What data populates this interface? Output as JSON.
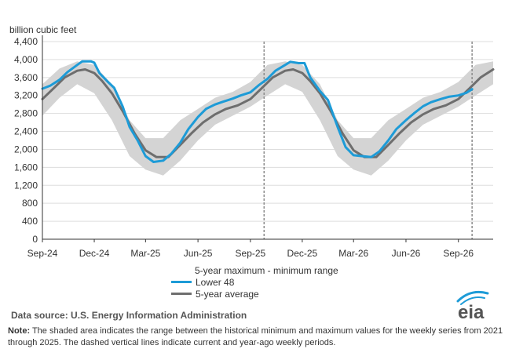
{
  "chart_data": {
    "type": "line",
    "unit_label": "billion cubic feet",
    "y_ticks": [
      0,
      400,
      800,
      1200,
      1600,
      2000,
      2400,
      2800,
      3200,
      3600,
      4000,
      4400
    ],
    "y_tick_labels": [
      "0",
      "400",
      "800",
      "1,200",
      "1,600",
      "2,000",
      "2,400",
      "2,800",
      "3,200",
      "3,600",
      "4,000",
      "4,400"
    ],
    "ylim": [
      0,
      4400
    ],
    "x_range": [
      "2024-09-01",
      "2026-11-01"
    ],
    "x_ticks": [
      {
        "date": "2024-09-01",
        "label": "Sep-24"
      },
      {
        "date": "2024-12-01",
        "label": "Dec-24"
      },
      {
        "date": "2025-03-01",
        "label": "Mar-25"
      },
      {
        "date": "2025-06-01",
        "label": "Jun-25"
      },
      {
        "date": "2025-09-01",
        "label": "Sep-25"
      },
      {
        "date": "2025-12-01",
        "label": "Dec-25"
      },
      {
        "date": "2026-03-01",
        "label": "Mar-26"
      },
      {
        "date": "2026-06-01",
        "label": "Jun-26"
      },
      {
        "date": "2026-09-01",
        "label": "Sep-26"
      }
    ],
    "vertical_markers": [
      "2025-09-25",
      "2026-09-25"
    ],
    "grid": "horizontal",
    "legend_title": "5-year maximum - minimum range",
    "range_band": {
      "name": "5-year maximum - minimum range",
      "color": "#d4d4d4",
      "points": [
        {
          "date": "2024-09-01",
          "min": 2750,
          "max": 3450
        },
        {
          "date": "2024-10-01",
          "min": 3150,
          "max": 3800
        },
        {
          "date": "2024-11-01",
          "min": 3450,
          "max": 3960
        },
        {
          "date": "2024-12-01",
          "min": 3250,
          "max": 3880
        },
        {
          "date": "2025-01-01",
          "min": 2650,
          "max": 3450
        },
        {
          "date": "2025-02-01",
          "min": 1850,
          "max": 2650
        },
        {
          "date": "2025-03-01",
          "min": 1550,
          "max": 2250
        },
        {
          "date": "2025-04-01",
          "min": 1420,
          "max": 2250
        },
        {
          "date": "2025-05-01",
          "min": 1750,
          "max": 2650
        },
        {
          "date": "2025-06-01",
          "min": 2200,
          "max": 2900
        },
        {
          "date": "2025-07-01",
          "min": 2550,
          "max": 3150
        },
        {
          "date": "2025-08-01",
          "min": 2750,
          "max": 3280
        },
        {
          "date": "2025-09-01",
          "min": 2950,
          "max": 3500
        },
        {
          "date": "2025-10-01",
          "min": 3200,
          "max": 3880
        },
        {
          "date": "2025-11-01",
          "min": 3450,
          "max": 3960
        },
        {
          "date": "2025-12-01",
          "min": 3280,
          "max": 3880
        },
        {
          "date": "2026-01-01",
          "min": 2650,
          "max": 3450
        },
        {
          "date": "2026-02-01",
          "min": 1850,
          "max": 2650
        },
        {
          "date": "2026-03-01",
          "min": 1550,
          "max": 2250
        },
        {
          "date": "2026-04-01",
          "min": 1420,
          "max": 2250
        },
        {
          "date": "2026-05-01",
          "min": 1750,
          "max": 2650
        },
        {
          "date": "2026-06-01",
          "min": 2200,
          "max": 2900
        },
        {
          "date": "2026-07-01",
          "min": 2550,
          "max": 3150
        },
        {
          "date": "2026-08-01",
          "min": 2750,
          "max": 3280
        },
        {
          "date": "2026-09-01",
          "min": 2950,
          "max": 3500
        },
        {
          "date": "2026-10-01",
          "min": 3200,
          "max": 3880
        },
        {
          "date": "2026-11-01",
          "min": 3450,
          "max": 3960
        }
      ]
    },
    "series": [
      {
        "name": "Lower 48",
        "color": "#1d9bd7",
        "points": [
          {
            "date": "2024-09-01",
            "value": 3350
          },
          {
            "date": "2024-09-15",
            "value": 3420
          },
          {
            "date": "2024-10-01",
            "value": 3550
          },
          {
            "date": "2024-10-15",
            "value": 3720
          },
          {
            "date": "2024-11-01",
            "value": 3880
          },
          {
            "date": "2024-11-10",
            "value": 3960
          },
          {
            "date": "2024-11-25",
            "value": 3960
          },
          {
            "date": "2024-12-01",
            "value": 3930
          },
          {
            "date": "2024-12-10",
            "value": 3700
          },
          {
            "date": "2024-12-25",
            "value": 3500
          },
          {
            "date": "2025-01-05",
            "value": 3370
          },
          {
            "date": "2025-01-20",
            "value": 2950
          },
          {
            "date": "2025-02-01",
            "value": 2500
          },
          {
            "date": "2025-02-15",
            "value": 2200
          },
          {
            "date": "2025-03-01",
            "value": 1850
          },
          {
            "date": "2025-03-15",
            "value": 1720
          },
          {
            "date": "2025-04-01",
            "value": 1750
          },
          {
            "date": "2025-04-15",
            "value": 1900
          },
          {
            "date": "2025-05-01",
            "value": 2150
          },
          {
            "date": "2025-05-15",
            "value": 2450
          },
          {
            "date": "2025-06-01",
            "value": 2720
          },
          {
            "date": "2025-06-15",
            "value": 2900
          },
          {
            "date": "2025-07-01",
            "value": 3000
          },
          {
            "date": "2025-07-15",
            "value": 3060
          },
          {
            "date": "2025-08-01",
            "value": 3130
          },
          {
            "date": "2025-08-15",
            "value": 3200
          },
          {
            "date": "2025-09-01",
            "value": 3270
          },
          {
            "date": "2025-09-15",
            "value": 3420
          },
          {
            "date": "2025-10-01",
            "value": 3570
          },
          {
            "date": "2025-10-15",
            "value": 3750
          },
          {
            "date": "2025-11-01",
            "value": 3880
          },
          {
            "date": "2025-11-10",
            "value": 3950
          },
          {
            "date": "2025-11-25",
            "value": 3920
          },
          {
            "date": "2025-12-05",
            "value": 3920
          },
          {
            "date": "2025-12-15",
            "value": 3600
          },
          {
            "date": "2026-01-01",
            "value": 3300
          },
          {
            "date": "2026-01-15",
            "value": 3100
          },
          {
            "date": "2026-02-01",
            "value": 2500
          },
          {
            "date": "2026-02-15",
            "value": 2050
          },
          {
            "date": "2026-03-01",
            "value": 1870
          },
          {
            "date": "2026-03-15",
            "value": 1850
          },
          {
            "date": "2026-04-01",
            "value": 1830
          },
          {
            "date": "2026-04-15",
            "value": 1950
          },
          {
            "date": "2026-05-01",
            "value": 2200
          },
          {
            "date": "2026-05-15",
            "value": 2450
          },
          {
            "date": "2026-06-01",
            "value": 2650
          },
          {
            "date": "2026-06-15",
            "value": 2800
          },
          {
            "date": "2026-07-01",
            "value": 2960
          },
          {
            "date": "2026-07-15",
            "value": 3050
          },
          {
            "date": "2026-08-01",
            "value": 3120
          },
          {
            "date": "2026-08-15",
            "value": 3170
          },
          {
            "date": "2026-09-01",
            "value": 3200
          },
          {
            "date": "2026-09-15",
            "value": 3260
          },
          {
            "date": "2026-09-25",
            "value": 3340
          }
        ]
      },
      {
        "name": "5-year average",
        "color": "#6e6e6e",
        "points": [
          {
            "date": "2024-09-01",
            "value": 3120
          },
          {
            "date": "2024-09-20",
            "value": 3350
          },
          {
            "date": "2024-10-10",
            "value": 3600
          },
          {
            "date": "2024-11-01",
            "value": 3750
          },
          {
            "date": "2024-11-15",
            "value": 3780
          },
          {
            "date": "2024-12-01",
            "value": 3700
          },
          {
            "date": "2024-12-15",
            "value": 3520
          },
          {
            "date": "2025-01-01",
            "value": 3250
          },
          {
            "date": "2025-01-20",
            "value": 2850
          },
          {
            "date": "2025-02-10",
            "value": 2350
          },
          {
            "date": "2025-03-01",
            "value": 1980
          },
          {
            "date": "2025-03-20",
            "value": 1830
          },
          {
            "date": "2025-04-10",
            "value": 1830
          },
          {
            "date": "2025-05-01",
            "value": 2100
          },
          {
            "date": "2025-05-20",
            "value": 2350
          },
          {
            "date": "2025-06-10",
            "value": 2600
          },
          {
            "date": "2025-07-01",
            "value": 2780
          },
          {
            "date": "2025-07-20",
            "value": 2900
          },
          {
            "date": "2025-08-10",
            "value": 2980
          },
          {
            "date": "2025-09-01",
            "value": 3120
          },
          {
            "date": "2025-09-20",
            "value": 3350
          },
          {
            "date": "2025-10-10",
            "value": 3600
          },
          {
            "date": "2025-11-01",
            "value": 3750
          },
          {
            "date": "2025-11-15",
            "value": 3780
          },
          {
            "date": "2025-12-01",
            "value": 3700
          },
          {
            "date": "2025-12-15",
            "value": 3520
          },
          {
            "date": "2026-01-01",
            "value": 3250
          },
          {
            "date": "2026-01-20",
            "value": 2850
          },
          {
            "date": "2026-02-10",
            "value": 2350
          },
          {
            "date": "2026-03-01",
            "value": 1980
          },
          {
            "date": "2026-03-20",
            "value": 1830
          },
          {
            "date": "2026-04-10",
            "value": 1830
          },
          {
            "date": "2026-05-01",
            "value": 2100
          },
          {
            "date": "2026-05-20",
            "value": 2350
          },
          {
            "date": "2026-06-10",
            "value": 2600
          },
          {
            "date": "2026-07-01",
            "value": 2780
          },
          {
            "date": "2026-07-20",
            "value": 2900
          },
          {
            "date": "2026-08-10",
            "value": 2980
          },
          {
            "date": "2026-09-01",
            "value": 3120
          },
          {
            "date": "2026-09-20",
            "value": 3350
          },
          {
            "date": "2026-10-10",
            "value": 3600
          },
          {
            "date": "2026-11-01",
            "value": 3780
          }
        ]
      }
    ]
  },
  "footer": {
    "source": "Data source:  U.S. Energy Information Administration",
    "note_label": "Note:",
    "note_text": " The shaded area indicates the range between the historical minimum and maximum values for the weekly series from 2021 through 2025. The dashed vertical lines indicate current and year-ago weekly periods.",
    "logo_text": "eia"
  }
}
